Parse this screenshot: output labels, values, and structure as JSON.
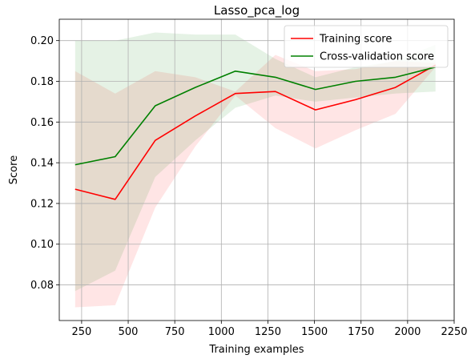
{
  "chart_data": {
    "type": "line",
    "title": "Lasso_pca_log",
    "xlabel": "Training examples",
    "ylabel": "Score",
    "xlim": [
      130,
      2250
    ],
    "ylim": [
      0.0625,
      0.2105
    ],
    "xticks": [
      250,
      500,
      750,
      1000,
      1250,
      1500,
      1750,
      2000,
      2250
    ],
    "yticks": [
      0.08,
      0.1,
      0.12,
      0.14,
      0.16,
      0.18,
      0.2
    ],
    "xtick_labels": [
      "250",
      "500",
      "750",
      "1000",
      "1250",
      "1500",
      "1750",
      "2000",
      "2250"
    ],
    "ytick_labels": [
      "0.08",
      "0.10",
      "0.12",
      "0.14",
      "0.16",
      "0.18",
      "0.20"
    ],
    "grid": true,
    "legend_position": "top-right",
    "x": [
      215,
      430,
      645,
      860,
      1075,
      1290,
      1505,
      1720,
      1935,
      2150
    ],
    "series": [
      {
        "name": "Training score",
        "color": "#ff0000",
        "values": [
          0.127,
          0.122,
          0.151,
          0.163,
          0.174,
          0.175,
          0.166,
          0.171,
          0.177,
          0.188
        ],
        "band_lower": [
          0.069,
          0.07,
          0.118,
          0.148,
          0.173,
          0.157,
          0.147,
          0.156,
          0.164,
          0.187
        ],
        "band_upper": [
          0.185,
          0.174,
          0.185,
          0.182,
          0.175,
          0.193,
          0.185,
          0.186,
          0.19,
          0.189
        ],
        "band_color": "#ff0000"
      },
      {
        "name": "Cross-validation score",
        "color": "#008000",
        "values": [
          0.139,
          0.143,
          0.168,
          0.177,
          0.185,
          0.182,
          0.176,
          0.18,
          0.182,
          0.187
        ],
        "band_lower": [
          0.077,
          0.087,
          0.133,
          0.151,
          0.167,
          0.173,
          0.17,
          0.172,
          0.174,
          0.175
        ],
        "band_upper": [
          0.2,
          0.2,
          0.204,
          0.203,
          0.203,
          0.191,
          0.182,
          0.187,
          0.19,
          0.198
        ],
        "band_color": "#008000"
      }
    ]
  }
}
